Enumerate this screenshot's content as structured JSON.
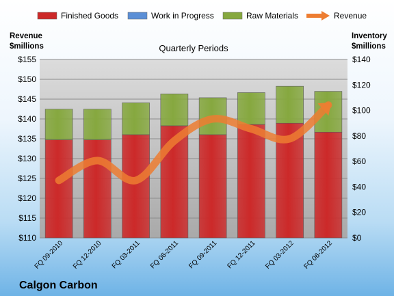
{
  "chart_data": {
    "type": "bar",
    "title": "Quarterly Periods",
    "company": "Calgon Carbon",
    "categories": [
      "FQ 09-2010",
      "FQ 12-2010",
      "FQ 03-2011",
      "FQ 06-2011",
      "FQ 09-2011",
      "FQ 12-2011",
      "FQ 03-2012",
      "FQ 06-2012"
    ],
    "stacked": true,
    "series": [
      {
        "name": "Finished Goods",
        "axis": "right",
        "values": [
          77,
          77,
          81,
          88,
          81,
          89,
          90,
          83
        ],
        "color": "#cc2929"
      },
      {
        "name": "Work in Progress",
        "axis": "right",
        "values": [
          0,
          0,
          0,
          0,
          0,
          0,
          0,
          0
        ],
        "color": "#5b8fd6"
      },
      {
        "name": "Raw Materials",
        "axis": "right",
        "values": [
          24,
          24,
          25,
          25,
          29,
          25,
          29,
          32
        ],
        "color": "#86a83f"
      },
      {
        "name": "Revenue",
        "axis": "left",
        "type": "line",
        "values": [
          124.5,
          129.5,
          124.5,
          134.5,
          140.0,
          137.5,
          135.0,
          143.5
        ],
        "color": "#ed7d31"
      }
    ],
    "left_axis": {
      "label": "Revenue\n$millions",
      "ylim": [
        110,
        155
      ],
      "ticks": [
        "$110",
        "$115",
        "$120",
        "$125",
        "$130",
        "$135",
        "$140",
        "$145",
        "$150",
        "$155"
      ]
    },
    "right_axis": {
      "label": "Inventory\n$millions",
      "ylim": [
        0,
        140
      ],
      "ticks": [
        "$0",
        "$20",
        "$40",
        "$60",
        "$80",
        "$100",
        "$120",
        "$140"
      ]
    },
    "grid": true,
    "legend_position": "top"
  }
}
